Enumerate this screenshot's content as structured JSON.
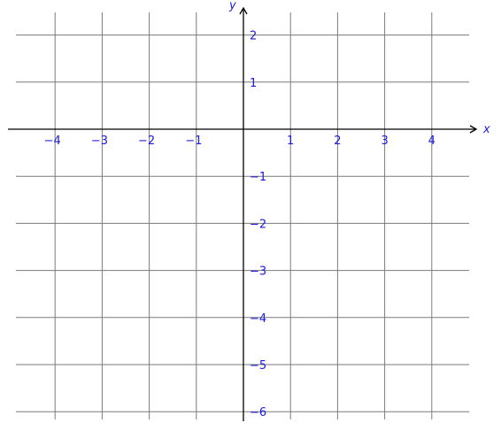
{
  "chart_data": {
    "type": "coordinate-grid",
    "title": "",
    "xlabel": "x",
    "ylabel": "y",
    "xlim": [
      -5,
      5
    ],
    "ylim": [
      -6,
      2
    ],
    "grid": true,
    "x_ticks": [
      -4,
      -3,
      -2,
      -1,
      1,
      2,
      3,
      4
    ],
    "y_ticks": [
      2,
      1,
      -1,
      -2,
      -3,
      -4,
      -5,
      -6
    ],
    "x_tick_labels": [
      "−4",
      "−3",
      "−2",
      "−1",
      "1",
      "2",
      "3",
      "4"
    ],
    "y_tick_labels": [
      "2",
      "1",
      "−1",
      "−2",
      "−3",
      "−4",
      "−5",
      "−6"
    ]
  },
  "colors": {
    "label": "#1a1adb",
    "grid": "#7a7a7a",
    "axis": "#000000"
  }
}
